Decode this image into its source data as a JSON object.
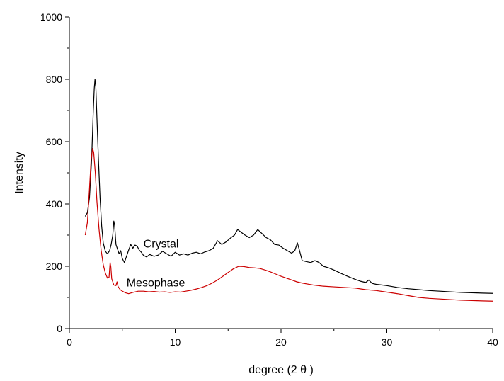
{
  "chart_data": {
    "type": "line",
    "title": "",
    "xlabel": "degree (2 θ )",
    "ylabel": "Intensity",
    "xlim": [
      0,
      40
    ],
    "ylim": [
      0,
      1000
    ],
    "x_ticks": [
      0,
      10,
      20,
      30,
      40
    ],
    "y_ticks": [
      0,
      200,
      400,
      600,
      800,
      1000
    ],
    "grid": false,
    "legend": "none",
    "annotations": [
      {
        "text": "Crystal",
        "x": 7.0,
        "y": 260
      },
      {
        "text": "Mesophase",
        "x": 5.4,
        "y": 135
      }
    ],
    "series": [
      {
        "label": "Crystal",
        "color": "#000000",
        "points": [
          [
            1.5,
            360
          ],
          [
            1.7,
            372
          ],
          [
            1.9,
            420
          ],
          [
            2.1,
            540
          ],
          [
            2.25,
            690
          ],
          [
            2.35,
            770
          ],
          [
            2.42,
            800
          ],
          [
            2.5,
            775
          ],
          [
            2.6,
            680
          ],
          [
            2.75,
            540
          ],
          [
            2.9,
            420
          ],
          [
            3.05,
            330
          ],
          [
            3.2,
            275
          ],
          [
            3.4,
            248
          ],
          [
            3.6,
            240
          ],
          [
            3.8,
            250
          ],
          [
            3.95,
            270
          ],
          [
            4.1,
            300
          ],
          [
            4.2,
            345
          ],
          [
            4.28,
            330
          ],
          [
            4.4,
            270
          ],
          [
            4.55,
            255
          ],
          [
            4.7,
            240
          ],
          [
            4.85,
            250
          ],
          [
            5.0,
            225
          ],
          [
            5.2,
            212
          ],
          [
            5.4,
            232
          ],
          [
            5.6,
            252
          ],
          [
            5.8,
            270
          ],
          [
            6.0,
            258
          ],
          [
            6.2,
            268
          ],
          [
            6.4,
            265
          ],
          [
            6.6,
            252
          ],
          [
            6.8,
            245
          ],
          [
            7.0,
            235
          ],
          [
            7.3,
            230
          ],
          [
            7.6,
            238
          ],
          [
            8.0,
            232
          ],
          [
            8.4,
            236
          ],
          [
            8.8,
            248
          ],
          [
            9.2,
            240
          ],
          [
            9.6,
            232
          ],
          [
            10.0,
            245
          ],
          [
            10.4,
            236
          ],
          [
            10.8,
            240
          ],
          [
            11.2,
            236
          ],
          [
            11.6,
            242
          ],
          [
            12.0,
            245
          ],
          [
            12.4,
            240
          ],
          [
            12.8,
            246
          ],
          [
            13.2,
            250
          ],
          [
            13.6,
            258
          ],
          [
            14.0,
            282
          ],
          [
            14.4,
            270
          ],
          [
            14.8,
            278
          ],
          [
            15.2,
            290
          ],
          [
            15.6,
            300
          ],
          [
            15.9,
            318
          ],
          [
            16.2,
            310
          ],
          [
            16.6,
            300
          ],
          [
            17.0,
            292
          ],
          [
            17.4,
            300
          ],
          [
            17.8,
            318
          ],
          [
            18.2,
            305
          ],
          [
            18.6,
            292
          ],
          [
            19.0,
            285
          ],
          [
            19.4,
            270
          ],
          [
            19.8,
            268
          ],
          [
            20.2,
            258
          ],
          [
            20.6,
            250
          ],
          [
            21.0,
            242
          ],
          [
            21.3,
            250
          ],
          [
            21.55,
            275
          ],
          [
            21.75,
            250
          ],
          [
            22.0,
            218
          ],
          [
            22.4,
            215
          ],
          [
            22.8,
            212
          ],
          [
            23.2,
            218
          ],
          [
            23.6,
            212
          ],
          [
            24.0,
            200
          ],
          [
            24.5,
            195
          ],
          [
            25.0,
            188
          ],
          [
            25.5,
            180
          ],
          [
            26.0,
            172
          ],
          [
            26.5,
            165
          ],
          [
            27.0,
            158
          ],
          [
            27.5,
            152
          ],
          [
            28.0,
            148
          ],
          [
            28.3,
            156
          ],
          [
            28.6,
            145
          ],
          [
            29.0,
            142
          ],
          [
            29.5,
            140
          ],
          [
            30.0,
            138
          ],
          [
            31.0,
            132
          ],
          [
            32.0,
            128
          ],
          [
            33.0,
            125
          ],
          [
            34.0,
            122
          ],
          [
            35.0,
            120
          ],
          [
            36.0,
            118
          ],
          [
            37.0,
            116
          ],
          [
            38.0,
            115
          ],
          [
            39.0,
            114
          ],
          [
            40.0,
            113
          ]
        ]
      },
      {
        "label": "Mesophase",
        "color": "#cc0000",
        "points": [
          [
            1.5,
            300
          ],
          [
            1.7,
            340
          ],
          [
            1.9,
            450
          ],
          [
            2.05,
            540
          ],
          [
            2.2,
            578
          ],
          [
            2.3,
            565
          ],
          [
            2.45,
            500
          ],
          [
            2.6,
            410
          ],
          [
            2.8,
            320
          ],
          [
            3.0,
            252
          ],
          [
            3.2,
            205
          ],
          [
            3.4,
            178
          ],
          [
            3.6,
            162
          ],
          [
            3.75,
            165
          ],
          [
            3.85,
            212
          ],
          [
            3.92,
            198
          ],
          [
            4.0,
            160
          ],
          [
            4.2,
            140
          ],
          [
            4.4,
            138
          ],
          [
            4.5,
            150
          ],
          [
            4.6,
            135
          ],
          [
            4.8,
            125
          ],
          [
            5.0,
            120
          ],
          [
            5.3,
            115
          ],
          [
            5.6,
            112
          ],
          [
            6.0,
            116
          ],
          [
            6.5,
            120
          ],
          [
            7.0,
            120
          ],
          [
            7.5,
            118
          ],
          [
            8.0,
            119
          ],
          [
            8.5,
            117
          ],
          [
            9.0,
            118
          ],
          [
            9.5,
            116
          ],
          [
            10.0,
            118
          ],
          [
            10.5,
            117
          ],
          [
            11.0,
            120
          ],
          [
            11.5,
            123
          ],
          [
            12.0,
            127
          ],
          [
            12.5,
            132
          ],
          [
            13.0,
            138
          ],
          [
            13.5,
            146
          ],
          [
            14.0,
            156
          ],
          [
            14.5,
            168
          ],
          [
            15.0,
            180
          ],
          [
            15.5,
            192
          ],
          [
            16.0,
            200
          ],
          [
            16.5,
            199
          ],
          [
            17.0,
            196
          ],
          [
            17.5,
            195
          ],
          [
            18.0,
            193
          ],
          [
            18.5,
            188
          ],
          [
            19.0,
            182
          ],
          [
            19.5,
            175
          ],
          [
            20.0,
            168
          ],
          [
            20.5,
            162
          ],
          [
            21.0,
            156
          ],
          [
            21.5,
            150
          ],
          [
            22.0,
            146
          ],
          [
            22.5,
            143
          ],
          [
            23.0,
            140
          ],
          [
            23.5,
            138
          ],
          [
            24.0,
            136
          ],
          [
            25.0,
            134
          ],
          [
            26.0,
            132
          ],
          [
            27.0,
            130
          ],
          [
            28.0,
            125
          ],
          [
            29.0,
            122
          ],
          [
            30.0,
            117
          ],
          [
            31.0,
            112
          ],
          [
            32.0,
            106
          ],
          [
            33.0,
            100
          ],
          [
            34.0,
            97
          ],
          [
            35.0,
            95
          ],
          [
            36.0,
            93
          ],
          [
            37.0,
            91
          ],
          [
            38.0,
            90
          ],
          [
            39.0,
            89
          ],
          [
            40.0,
            88
          ]
        ]
      }
    ]
  }
}
